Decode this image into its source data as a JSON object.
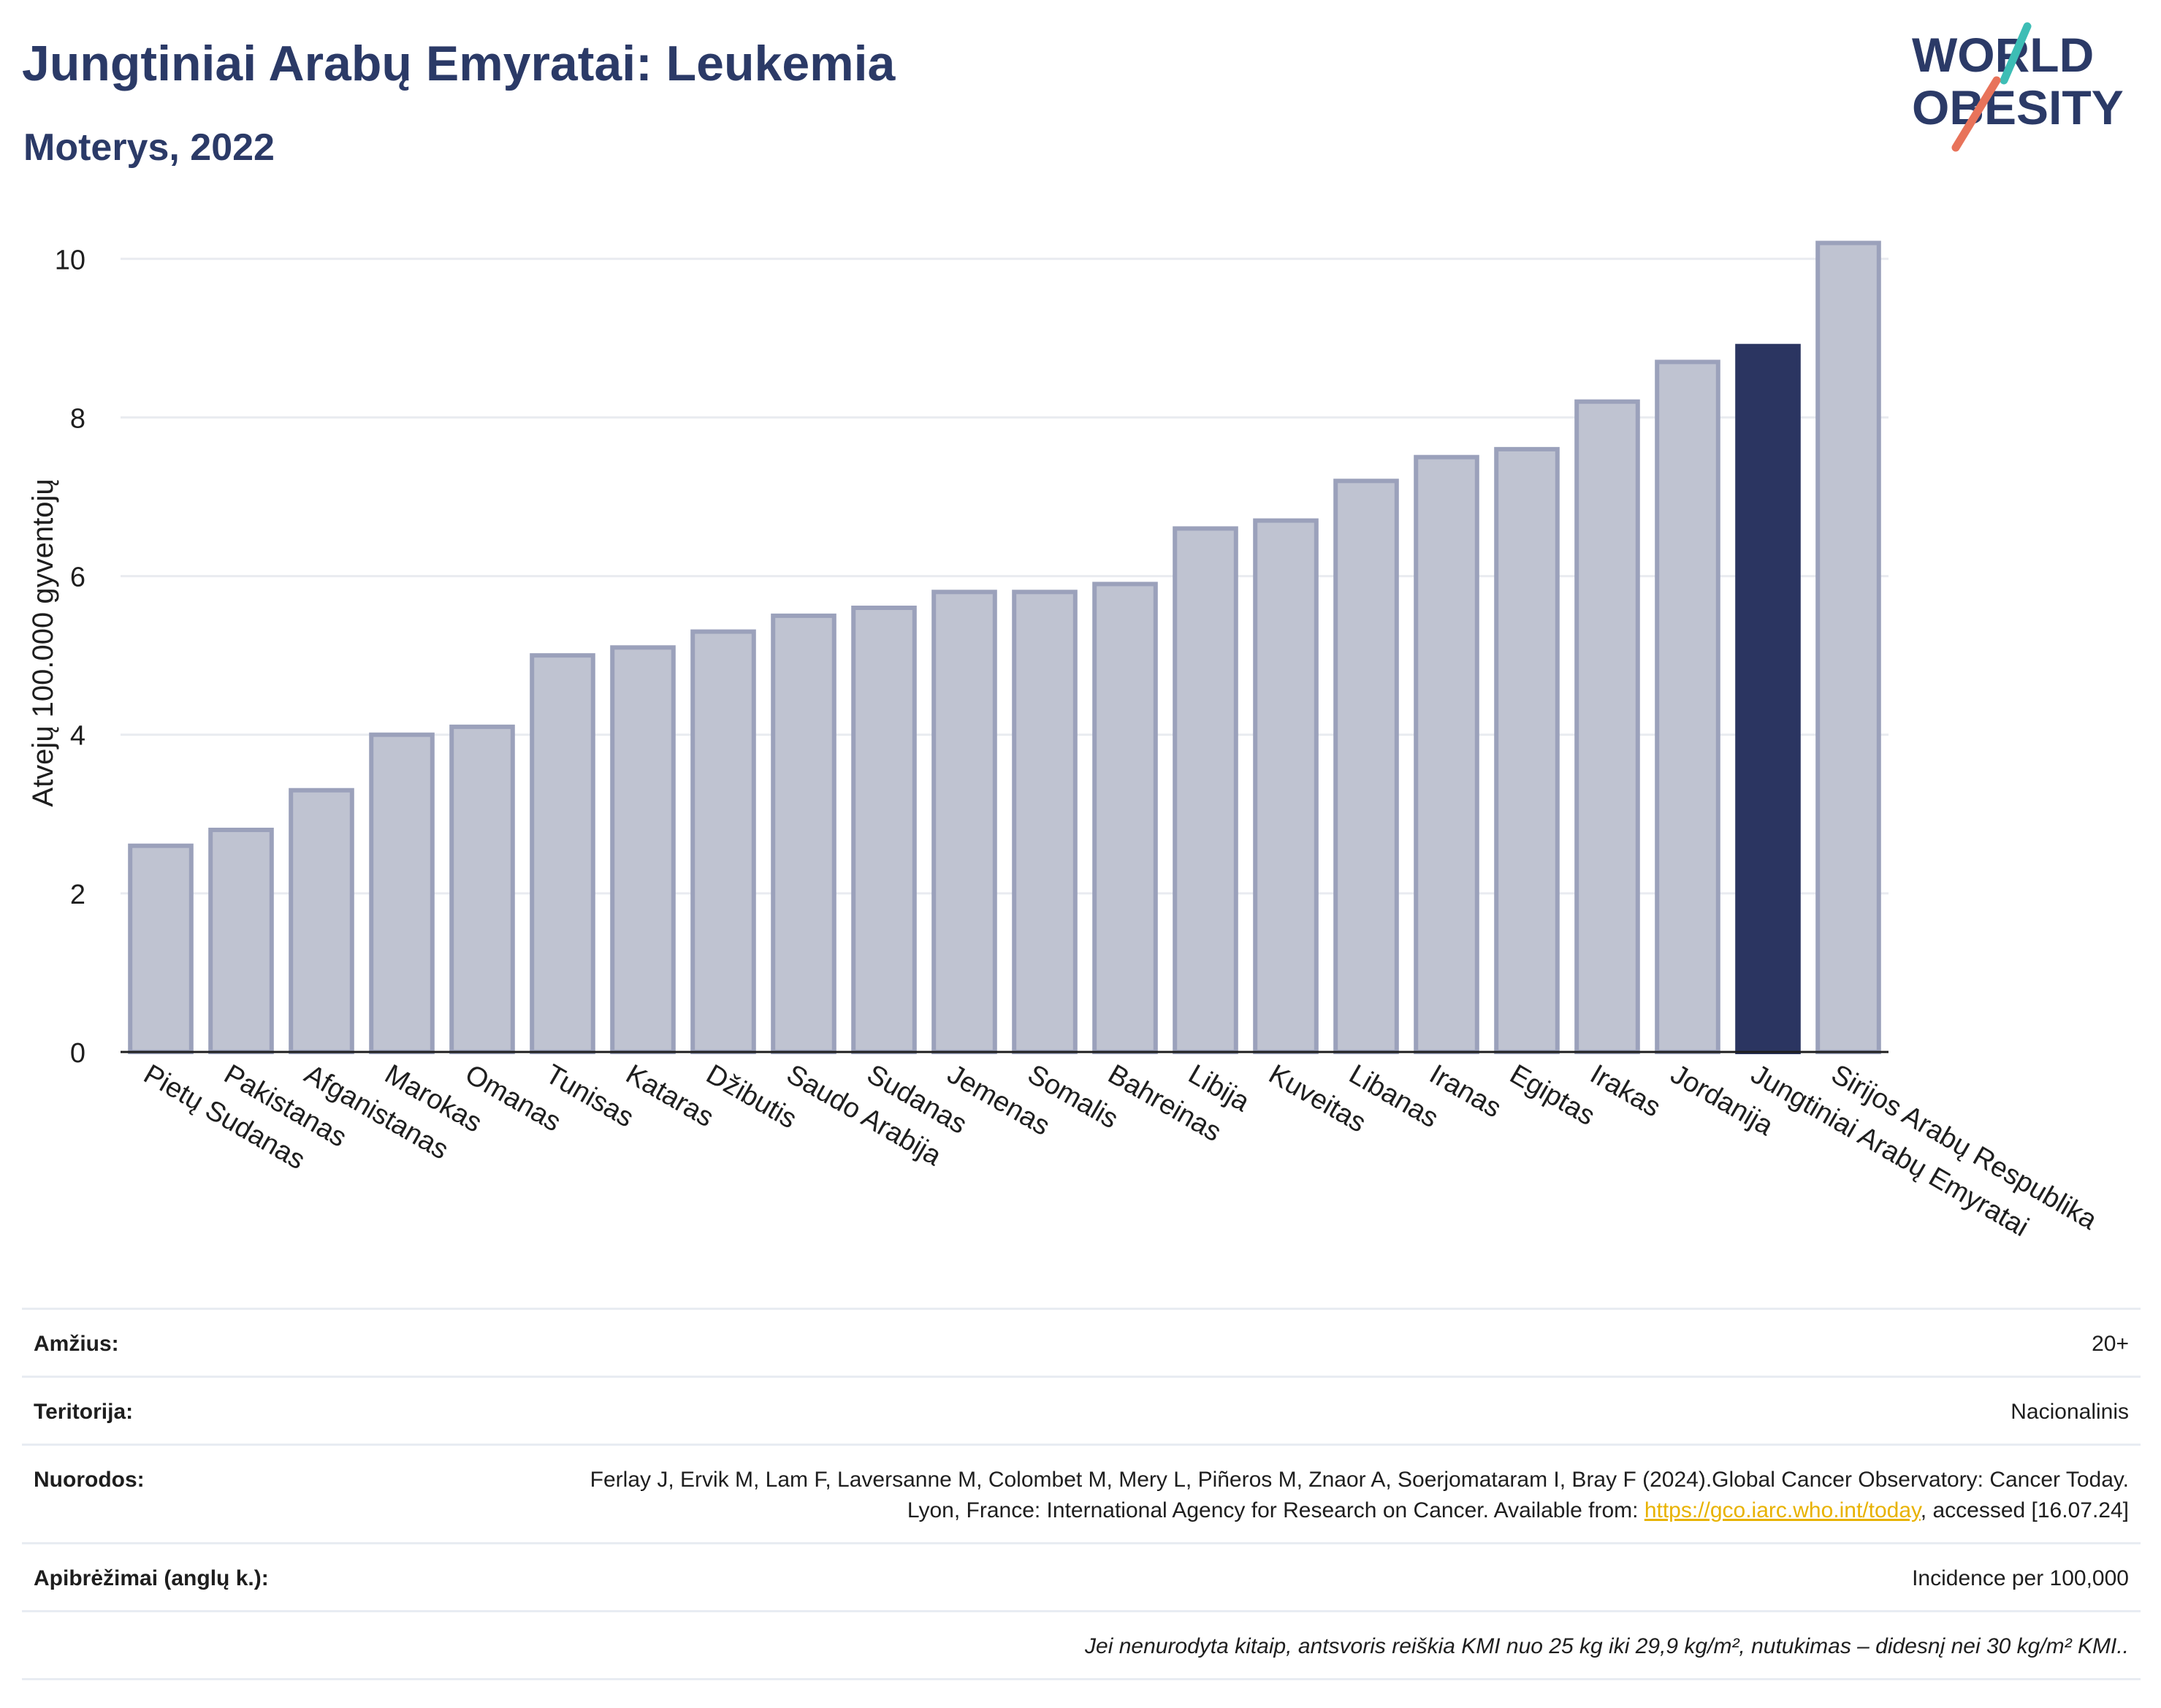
{
  "header": {
    "title": "Jungtiniai Arabų Emyratai: Leukemia",
    "subtitle": "Moterys, 2022"
  },
  "logo": {
    "line1": "WORLD",
    "line2": "OBESITY"
  },
  "colors": {
    "bar": "#bfc3d1",
    "bar_stroke": "#9ba1bb",
    "highlight": "#2b3561",
    "grid": "#e9ebf0",
    "title": "#2b3a67",
    "logo_teal": "#3dbdb5",
    "logo_coral": "#e8735a"
  },
  "chart_data": {
    "type": "bar",
    "ylabel": "Atvejų 100.000 gyventojų",
    "ylim": [
      0,
      10.5
    ],
    "yticks": [
      0,
      2,
      4,
      6,
      8,
      10
    ],
    "grid": true,
    "highlight": "Jungtiniai Arabų Emyratai",
    "categories": [
      "Pietų Sudanas",
      "Pakistanas",
      "Afganistanas",
      "Marokas",
      "Omanas",
      "Tunisas",
      "Kataras",
      "Džibutis",
      "Saudo Arabija",
      "Sudanas",
      "Jemenas",
      "Somalis",
      "Bahreinas",
      "Libija",
      "Kuveitas",
      "Libanas",
      "Iranas",
      "Egiptas",
      "Irakas",
      "Jordanija",
      "Jungtiniai Arabų Emyratai",
      "Sirijos Arabų Respublika"
    ],
    "values": [
      2.6,
      2.8,
      3.3,
      4.0,
      4.1,
      5.0,
      5.1,
      5.3,
      5.5,
      5.6,
      5.8,
      5.8,
      5.9,
      6.6,
      6.7,
      7.2,
      7.5,
      7.6,
      8.2,
      8.7,
      8.9,
      10.2
    ]
  },
  "meta": {
    "age_label": "Amžius:",
    "age_value": "20+",
    "territory_label": "Teritorija:",
    "territory_value": "Nacionalinis",
    "refs_label": "Nuorodos:",
    "refs_text_1": "Ferlay J, Ervik M, Lam F, Laversanne M, Colombet M, Mery L, Piñeros M, Znaor A, Soerjomataram I, Bray F (2024).Global Cancer Observatory: Cancer Today. Lyon, France: International Agency for Research on Cancer. Available from: ",
    "refs_link": "https://gco.iarc.who.int/today",
    "refs_text_2": ", accessed [16.07.24]",
    "defs_label": "Apibrėžimai (anglų k.):",
    "defs_value": "Incidence per 100,000",
    "note": "Jei nenurodyta kitaip, antsvoris reiškia KMI nuo 25 kg iki 29,9 kg/m², nutukimas – didesnį nei 30 kg/m² KMI.."
  }
}
